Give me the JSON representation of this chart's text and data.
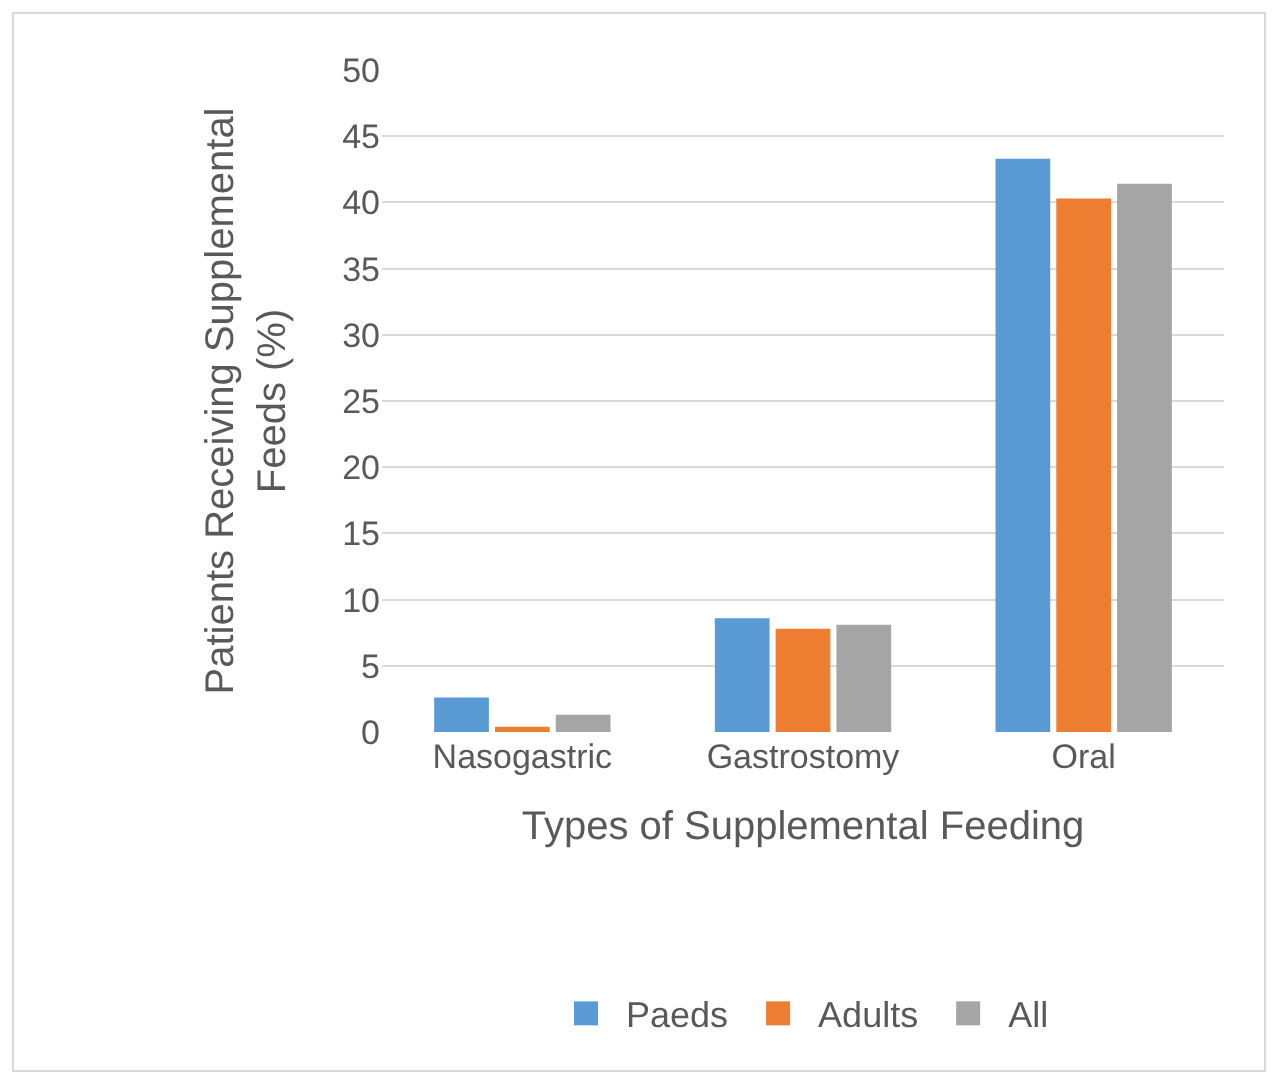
{
  "chart_data": {
    "type": "bar",
    "xlabel": "Types of Supplemental Feeding",
    "ylabel": "Patients Receiving Supplemental Feeds (%)",
    "categories": [
      "Nasogastric",
      "Gastrostomy",
      "Oral"
    ],
    "series": [
      {
        "name": "Paeds",
        "color": "#5b9bd5",
        "values": [
          2.6,
          8.6,
          43.3
        ]
      },
      {
        "name": "Adults",
        "color": "#ed7d31",
        "values": [
          0.4,
          7.8,
          40.3
        ]
      },
      {
        "name": "All",
        "color": "#a5a5a5",
        "values": [
          1.3,
          8.1,
          41.4
        ]
      }
    ],
    "ylim": [
      0,
      50
    ],
    "yticks": [
      0,
      5,
      10,
      15,
      20,
      25,
      30,
      35,
      40,
      45,
      50
    ],
    "grid": "y",
    "legend": "bottom"
  }
}
